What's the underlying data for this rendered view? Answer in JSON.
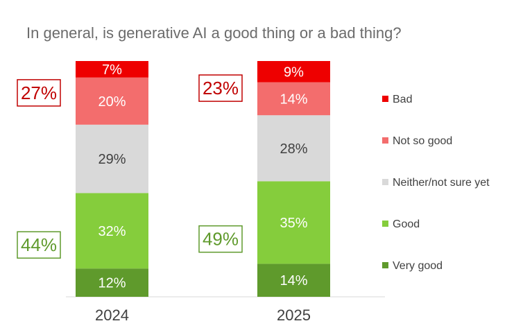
{
  "chart_data": {
    "type": "bar",
    "stacked": true,
    "title": "In general, is generative AI a good thing or a bad thing?",
    "categories": [
      "2024",
      "2025"
    ],
    "series": [
      {
        "name": "Very good",
        "color": "#5f9a2c",
        "label_color": "#ffffff",
        "values": [
          12,
          14
        ],
        "labels": [
          "12%",
          "14%"
        ]
      },
      {
        "name": "Good",
        "color": "#85cd3c",
        "label_color": "#ffffff",
        "values": [
          32,
          35
        ],
        "labels": [
          "32%",
          "35%"
        ]
      },
      {
        "name": "Neither/not sure yet",
        "color": "#d9d9d9",
        "label_color": "#404040",
        "values": [
          29,
          28
        ],
        "labels": [
          "29%",
          "28%"
        ]
      },
      {
        "name": "Not so good",
        "color": "#f36d6d",
        "label_color": "#ffffff",
        "values": [
          20,
          14
        ],
        "labels": [
          "20%",
          "14%"
        ]
      },
      {
        "name": "Bad",
        "color": "#ee0000",
        "label_color": "#ffffff",
        "values": [
          7,
          9
        ],
        "labels": [
          "7%",
          "9%"
        ]
      }
    ],
    "legend_order": [
      "Bad",
      "Not so good",
      "Neither/not sure yet",
      "Good",
      "Very good"
    ],
    "legend_position": "right",
    "callouts": [
      {
        "category": "2024",
        "group": "negative",
        "text": "27%",
        "color": "#c00000"
      },
      {
        "category": "2024",
        "group": "positive",
        "text": "44%",
        "color": "#5f9a2c"
      },
      {
        "category": "2025",
        "group": "negative",
        "text": "23%",
        "color": "#c00000"
      },
      {
        "category": "2025",
        "group": "positive",
        "text": "49%",
        "color": "#5f9a2c"
      }
    ],
    "ylim": [
      0,
      100
    ]
  }
}
